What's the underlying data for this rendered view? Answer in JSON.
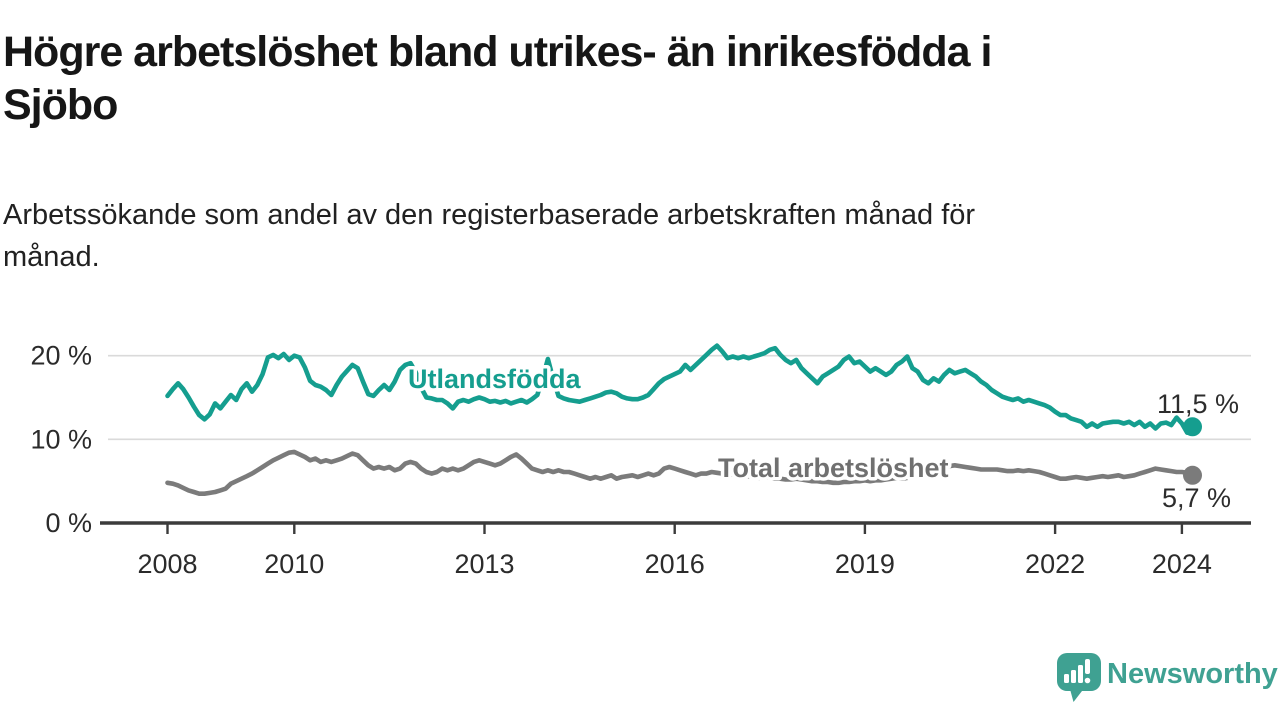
{
  "header": {
    "title_line1": "Högre arbetslöshet bland utrikes- än inrikesfödda i",
    "title_line2": "Sjöbo",
    "subtitle_line1": "Arbetssökande som andel av den registerbaserade arbetskraften månad för",
    "subtitle_line2": "månad."
  },
  "chart_data": {
    "type": "line",
    "frequency": "monthly",
    "x_start": "2008-01",
    "x_end": "2024-03",
    "ylim": [
      0,
      22
    ],
    "grid": "horizontal",
    "yticks": [
      {
        "value": 0,
        "label": "0 %"
      },
      {
        "value": 10,
        "label": "10 %"
      },
      {
        "value": 20,
        "label": "20 %"
      }
    ],
    "xticks": [
      {
        "year": 2008,
        "label": "2008"
      },
      {
        "year": 2010,
        "label": "2010"
      },
      {
        "year": 2013,
        "label": "2013"
      },
      {
        "year": 2016,
        "label": "2016"
      },
      {
        "year": 2019,
        "label": "2019"
      },
      {
        "year": 2022,
        "label": "2022"
      },
      {
        "year": 2024,
        "label": "2024"
      }
    ],
    "series": [
      {
        "name": "Utlandsfödda",
        "color": "#159e8f",
        "end_value": 11.5,
        "end_label": "11,5 %",
        "values": [
          15.2,
          16.0,
          16.7,
          16.0,
          15.0,
          13.9,
          12.9,
          12.4,
          13.0,
          14.3,
          13.7,
          14.5,
          15.3,
          14.7,
          16.0,
          16.7,
          15.7,
          16.5,
          17.8,
          19.8,
          20.1,
          19.7,
          20.2,
          19.5,
          20.0,
          19.8,
          18.6,
          17.0,
          16.5,
          16.3,
          15.9,
          15.3,
          16.5,
          17.5,
          18.2,
          18.9,
          18.5,
          16.9,
          15.4,
          15.2,
          15.9,
          16.5,
          15.9,
          16.9,
          18.3,
          18.9,
          19.1,
          18.0,
          16.2,
          15.0,
          14.9,
          14.7,
          14.7,
          14.3,
          13.7,
          14.5,
          14.7,
          14.5,
          14.8,
          15.0,
          14.8,
          14.5,
          14.6,
          14.4,
          14.6,
          14.3,
          14.5,
          14.7,
          14.4,
          14.8,
          15.3,
          17.3,
          19.6,
          17.2,
          15.2,
          14.9,
          14.7,
          14.6,
          14.5,
          14.7,
          14.9,
          15.1,
          15.3,
          15.6,
          15.7,
          15.5,
          15.1,
          14.9,
          14.8,
          14.8,
          15.0,
          15.3,
          16.0,
          16.7,
          17.2,
          17.5,
          17.8,
          18.1,
          18.9,
          18.3,
          18.9,
          19.5,
          20.1,
          20.7,
          21.2,
          20.5,
          19.7,
          19.9,
          19.7,
          19.9,
          19.7,
          19.9,
          20.1,
          20.3,
          20.7,
          20.9,
          20.1,
          19.5,
          19.1,
          19.5,
          18.5,
          17.9,
          17.3,
          16.7,
          17.5,
          17.9,
          18.3,
          18.7,
          19.5,
          19.9,
          19.1,
          19.3,
          18.7,
          18.1,
          18.5,
          18.1,
          17.7,
          18.1,
          18.9,
          19.3,
          19.9,
          18.5,
          18.1,
          17.1,
          16.7,
          17.3,
          16.9,
          17.7,
          18.3,
          17.9,
          18.1,
          18.3,
          17.9,
          17.5,
          16.9,
          16.5,
          15.9,
          15.5,
          15.1,
          14.9,
          14.7,
          14.9,
          14.5,
          14.7,
          14.5,
          14.3,
          14.1,
          13.8,
          13.3,
          12.9,
          12.9,
          12.5,
          12.3,
          12.1,
          11.5,
          11.9,
          11.5,
          11.9,
          12.0,
          12.1,
          12.1,
          11.9,
          12.1,
          11.7,
          12.1,
          11.5,
          11.9,
          11.3,
          11.9,
          12.0,
          11.7,
          12.6,
          11.9,
          10.8,
          11.5
        ]
      },
      {
        "name": "Total arbetslöshet",
        "color": "#7b7b7b",
        "label_color": "#707070",
        "end_value": 5.7,
        "end_label": "5,7 %",
        "values": [
          4.8,
          4.7,
          4.5,
          4.2,
          3.9,
          3.7,
          3.5,
          3.5,
          3.6,
          3.7,
          3.9,
          4.1,
          4.7,
          5.0,
          5.3,
          5.6,
          5.9,
          6.3,
          6.7,
          7.1,
          7.5,
          7.8,
          8.1,
          8.4,
          8.5,
          8.2,
          7.9,
          7.5,
          7.7,
          7.3,
          7.5,
          7.3,
          7.5,
          7.7,
          8.0,
          8.3,
          8.1,
          7.5,
          6.9,
          6.5,
          6.7,
          6.5,
          6.7,
          6.3,
          6.5,
          7.1,
          7.3,
          7.1,
          6.5,
          6.1,
          5.9,
          6.1,
          6.5,
          6.3,
          6.5,
          6.3,
          6.5,
          6.9,
          7.3,
          7.5,
          7.3,
          7.1,
          6.9,
          7.1,
          7.5,
          7.9,
          8.2,
          7.7,
          7.1,
          6.5,
          6.3,
          6.1,
          6.3,
          6.1,
          6.3,
          6.1,
          6.1,
          5.9,
          5.7,
          5.5,
          5.3,
          5.5,
          5.3,
          5.5,
          5.7,
          5.3,
          5.5,
          5.6,
          5.7,
          5.5,
          5.7,
          5.9,
          5.7,
          5.9,
          6.5,
          6.7,
          6.5,
          6.3,
          6.1,
          5.9,
          5.7,
          5.9,
          5.9,
          6.1,
          6.0,
          5.9,
          5.8,
          5.8,
          5.7,
          5.6,
          5.6,
          5.5,
          5.4,
          5.5,
          5.4,
          5.3,
          5.3,
          5.2,
          5.2,
          5.3,
          5.2,
          5.1,
          5.0,
          5.0,
          4.9,
          4.9,
          4.8,
          4.8,
          4.9,
          4.9,
          5.0,
          5.0,
          5.1,
          5.0,
          5.1,
          5.1,
          5.2,
          5.3,
          5.4,
          5.3,
          5.4,
          5.5,
          5.6,
          5.7,
          5.7,
          5.8,
          6.0,
          6.5,
          6.8,
          6.9,
          6.8,
          6.7,
          6.6,
          6.5,
          6.4,
          6.4,
          6.4,
          6.4,
          6.3,
          6.2,
          6.2,
          6.3,
          6.2,
          6.3,
          6.2,
          6.1,
          5.9,
          5.7,
          5.5,
          5.3,
          5.3,
          5.4,
          5.5,
          5.4,
          5.3,
          5.4,
          5.5,
          5.6,
          5.5,
          5.6,
          5.7,
          5.5,
          5.6,
          5.7,
          5.9,
          6.1,
          6.3,
          6.5,
          6.4,
          6.3,
          6.2,
          6.1,
          6.1,
          6.0,
          5.7
        ]
      }
    ]
  },
  "footer": {
    "brand": "Newsworthy",
    "brand_color": "#3fa192",
    "logo_icon": "newsworthy-speech-bubble-bar-chart-icon"
  }
}
